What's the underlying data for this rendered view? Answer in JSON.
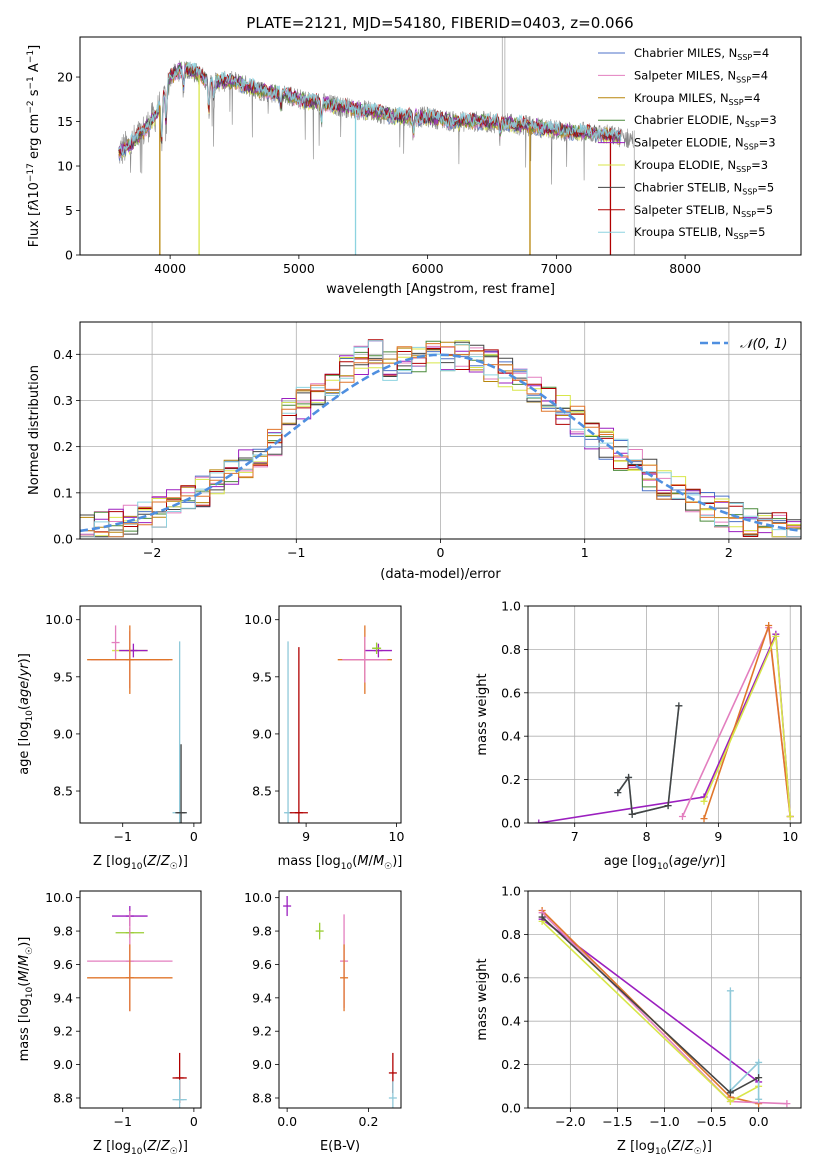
{
  "figure": {
    "title": "PLATE=2121, MJD=54180, FIBERID=0403, z=0.066"
  },
  "colors": {
    "chabrier_miles": "#4c72c8",
    "salpeter_miles": "#e37fbf",
    "kroupa_miles": "#b8860b",
    "chabrier_elodie": "#4a8a3a",
    "salpeter_elodie": "#9b1fbf",
    "kroupa_elodie": "#d8e64a",
    "chabrier_stelib": "#444444",
    "salpeter_stelib": "#b00000",
    "kroupa_stelib": "#8dd3e0",
    "data": "#888888",
    "model_mix": "#90c9d9",
    "gauss": "#4f8fe0",
    "orange": "#e0762b",
    "green": "#9acd32"
  },
  "chart_data": [
    {
      "id": "spectrum",
      "type": "line",
      "xlabel": "wavelength [Angstrom, rest frame]",
      "ylabel": "Flux [f_λ 10^-17 erg cm^-2 s^-1 A^-1]",
      "xlim": [
        3300,
        8900
      ],
      "ylim": [
        0,
        24.5
      ],
      "xticks": [
        "4000",
        "5000",
        "6000",
        "7000",
        "8000"
      ],
      "yticks": [
        "0",
        "5",
        "10",
        "15",
        "20"
      ],
      "legend": [
        {
          "model": "Chabrier MILES",
          "n": "=4",
          "key": "chabrier_miles"
        },
        {
          "model": "Salpeter MILES",
          "n": "=4",
          "key": "salpeter_miles"
        },
        {
          "model": "Kroupa MILES",
          "n": "=4",
          "key": "kroupa_miles"
        },
        {
          "model": "Chabrier ELODIE",
          "n": "=3",
          "key": "chabrier_elodie"
        },
        {
          "model": "Salpeter ELODIE",
          "n": "=3",
          "key": "salpeter_elodie"
        },
        {
          "model": "Kroupa ELODIE",
          "n": "=3",
          "key": "kroupa_elodie"
        },
        {
          "model": "Chabrier STELIB",
          "n": "=5",
          "key": "chabrier_stelib"
        },
        {
          "model": "Salpeter STELIB",
          "n": "=5",
          "key": "salpeter_stelib"
        },
        {
          "model": "Kroupa STELIB",
          "n": "=5",
          "key": "kroupa_stelib"
        }
      ],
      "legend_placement": "top-right",
      "continuum": [
        [
          3600,
          11.5
        ],
        [
          3700,
          12.5
        ],
        [
          3800,
          14
        ],
        [
          3900,
          16
        ],
        [
          4000,
          20
        ],
        [
          4100,
          21
        ],
        [
          4200,
          20.5
        ],
        [
          4300,
          19.5
        ],
        [
          4500,
          19.5
        ],
        [
          4700,
          18.5
        ],
        [
          4900,
          18
        ],
        [
          5000,
          17.5
        ],
        [
          5200,
          17
        ],
        [
          5400,
          16.5
        ],
        [
          5600,
          16
        ],
        [
          5800,
          15.5
        ],
        [
          6000,
          15.5
        ],
        [
          6200,
          15
        ],
        [
          6400,
          15
        ],
        [
          6600,
          14.8
        ],
        [
          6800,
          14.5
        ],
        [
          7000,
          14
        ],
        [
          7200,
          13.8
        ],
        [
          7400,
          13.5
        ],
        [
          7600,
          13
        ]
      ]
    },
    {
      "id": "residuals",
      "type": "line",
      "xlabel": "(data-model)/error",
      "ylabel": "Normed distribution",
      "xlim": [
        -2.5,
        2.5
      ],
      "ylim": [
        0,
        0.47
      ],
      "xticks": [
        "−2",
        "−1",
        "0",
        "1",
        "2"
      ],
      "yticks": [
        "0.0",
        "0.1",
        "0.2",
        "0.3",
        "0.4"
      ],
      "grid": true,
      "legend": "𝒩(0, 1)",
      "legend_placement": "top-right"
    },
    {
      "id": "age_vs_Z",
      "type": "scatter",
      "xlabel": "Z [log10(Z/Z☉)]",
      "ylabel": "age  [log10(age/yr)]",
      "xlim": [
        -1.6,
        0.1
      ],
      "ylim": [
        8.22,
        10.12
      ],
      "xticks": [
        "−1",
        "0"
      ],
      "yticks": [
        "8.5",
        "9.0",
        "9.5",
        "10.0"
      ],
      "points": [
        {
          "x": -0.9,
          "y": 9.73,
          "xerr": 0.25,
          "yerr": 0.03,
          "key": "kroupa_elodie"
        },
        {
          "x": -0.85,
          "y": 9.73,
          "xerr": 0.2,
          "yerr": 0.06,
          "key": "salpeter_elodie"
        },
        {
          "x": -1.1,
          "y": 9.8,
          "xerr": 0,
          "yerr": 0.15,
          "key": "salpeter_miles"
        },
        {
          "x": -0.9,
          "y": 9.65,
          "xerr": 0.55,
          "yerr": 0.25,
          "key": "salpeter_miles"
        },
        {
          "x": -0.9,
          "y": 9.65,
          "xerr": 0.6,
          "yerr": 0.3,
          "key": "orange"
        },
        {
          "x": -0.2,
          "y": 8.31,
          "xerr": 0.1,
          "yerr": 1.5,
          "key": "model_mix"
        },
        {
          "x": -0.18,
          "y": 8.31,
          "xerr": 0.08,
          "yerr": 0.6,
          "key": "chabrier_stelib"
        }
      ]
    },
    {
      "id": "age_vs_mass",
      "type": "scatter",
      "xlabel": "mass [log10(M/M☉)]",
      "ylabel": "",
      "xlim": [
        8.7,
        10.05
      ],
      "ylim": [
        8.22,
        10.12
      ],
      "xticks": [
        "9",
        "10"
      ],
      "yticks": [
        "8.5",
        "9.0",
        "9.5",
        "10.0"
      ],
      "points": [
        {
          "x": 9.8,
          "y": 9.73,
          "xerr": 0.15,
          "yerr": 0.06,
          "key": "salpeter_elodie"
        },
        {
          "x": 9.78,
          "y": 9.75,
          "xerr": 0.05,
          "yerr": 0.05,
          "key": "green"
        },
        {
          "x": 9.65,
          "y": 9.65,
          "xerr": 0.3,
          "yerr": 0.3,
          "key": "orange"
        },
        {
          "x": 9.65,
          "y": 9.65,
          "xerr": 0.25,
          "yerr": 0.2,
          "key": "salpeter_miles"
        },
        {
          "x": 8.8,
          "y": 8.31,
          "xerr": 0.03,
          "yerr": 1.5,
          "key": "model_mix"
        },
        {
          "x": 8.92,
          "y": 8.31,
          "xerr": 0.1,
          "yerr": 1.45,
          "key": "salpeter_stelib"
        }
      ]
    },
    {
      "id": "mass_weight_vs_age",
      "type": "line",
      "xlabel": "age  [log10(age/yr)]",
      "ylabel": "mass weight",
      "xlim": [
        6.35,
        10.15
      ],
      "ylim": [
        0,
        1.0
      ],
      "xticks": [
        "7",
        "8",
        "9",
        "10"
      ],
      "yticks": [
        "0.0",
        "0.2",
        "0.4",
        "0.6",
        "0.8",
        "1.0"
      ],
      "grid": true,
      "series": [
        {
          "key": "salpeter_elodie",
          "x": [
            6.5,
            8.8,
            9.8,
            10.0
          ],
          "y": [
            0.0,
            0.12,
            0.87,
            0.03
          ]
        },
        {
          "key": "salpeter_miles",
          "x": [
            8.5,
            9.7,
            10.0
          ],
          "y": [
            0.03,
            0.9,
            0.03
          ]
        },
        {
          "key": "orange",
          "x": [
            8.8,
            9.7,
            10.0
          ],
          "y": [
            0.02,
            0.91,
            0.03
          ]
        },
        {
          "key": "kroupa_elodie",
          "x": [
            8.8,
            9.8,
            10.0
          ],
          "y": [
            0.1,
            0.86,
            0.03
          ]
        },
        {
          "key": "model_mix",
          "x": [
            7.6,
            7.75,
            7.8,
            8.3,
            8.45
          ],
          "y": [
            0.14,
            0.21,
            0.04,
            0.08,
            0.54
          ]
        },
        {
          "key": "chabrier_stelib",
          "x": [
            7.6,
            7.75,
            7.8,
            8.3,
            8.45
          ],
          "y": [
            0.14,
            0.21,
            0.04,
            0.08,
            0.54
          ]
        }
      ]
    },
    {
      "id": "mass_vs_Z",
      "type": "scatter",
      "xlabel": "Z [log10(Z/Z☉)]",
      "ylabel": "mass [log10(M/M☉)]",
      "xlim": [
        -1.6,
        0.1
      ],
      "ylim": [
        8.74,
        10.04
      ],
      "xticks": [
        "−1",
        "0"
      ],
      "yticks": [
        "8.8",
        "9.0",
        "9.2",
        "9.4",
        "9.6",
        "9.8",
        "10.0"
      ],
      "points": [
        {
          "x": -0.9,
          "y": 9.89,
          "xerr": 0.25,
          "yerr": 0.06,
          "key": "salpeter_elodie"
        },
        {
          "x": -0.9,
          "y": 9.79,
          "xerr": 0.2,
          "yerr": 0.03,
          "key": "green"
        },
        {
          "x": -0.9,
          "y": 9.62,
          "xerr": 0.6,
          "yerr": 0.3,
          "key": "salpeter_miles"
        },
        {
          "x": -0.9,
          "y": 9.52,
          "xerr": 0.6,
          "yerr": 0.2,
          "key": "orange"
        },
        {
          "x": -0.2,
          "y": 8.92,
          "xerr": 0.1,
          "yerr": 0.15,
          "key": "salpeter_stelib"
        },
        {
          "x": -0.2,
          "y": 8.79,
          "xerr": 0.1,
          "yerr": 0.12,
          "key": "model_mix"
        }
      ]
    },
    {
      "id": "mass_vs_ebv",
      "type": "scatter",
      "xlabel": "E(B-V)",
      "ylabel": "",
      "xlim": [
        -0.02,
        0.28
      ],
      "ylim": [
        8.74,
        10.04
      ],
      "xticks": [
        "0.0",
        "0.2"
      ],
      "yticks": [
        "8.8",
        "9.0",
        "9.2",
        "9.4",
        "9.6",
        "9.8",
        "10.0"
      ],
      "points": [
        {
          "x": 0.0,
          "y": 9.95,
          "xerr": 0,
          "yerr": 0.06,
          "key": "salpeter_elodie"
        },
        {
          "x": 0.08,
          "y": 9.8,
          "xerr": 0,
          "yerr": 0.05,
          "key": "green"
        },
        {
          "x": 0.14,
          "y": 9.62,
          "xerr": 0,
          "yerr": 0.28,
          "key": "salpeter_miles"
        },
        {
          "x": 0.14,
          "y": 9.52,
          "xerr": 0,
          "yerr": 0.2,
          "key": "orange"
        },
        {
          "x": 0.26,
          "y": 8.95,
          "xerr": 0,
          "yerr": 0.12,
          "key": "salpeter_stelib"
        },
        {
          "x": 0.26,
          "y": 8.8,
          "xerr": 0,
          "yerr": 0.1,
          "key": "model_mix"
        }
      ]
    },
    {
      "id": "mass_weight_vs_Z",
      "type": "line",
      "xlabel": "Z [log10(Z/Z☉)]",
      "ylabel": "mass weight",
      "xlim": [
        -2.45,
        0.45
      ],
      "ylim": [
        0,
        1.0
      ],
      "xticks": [
        "−2.0",
        "−1.5",
        "−1.0",
        "−0.5",
        "0.0"
      ],
      "yticks": [
        "0.0",
        "0.2",
        "0.4",
        "0.6",
        "0.8",
        "1.0"
      ],
      "grid": true,
      "series": [
        {
          "key": "salpeter_elodie",
          "x": [
            -2.3,
            0.0
          ],
          "y": [
            0.87,
            0.12
          ]
        },
        {
          "key": "orange",
          "x": [
            -2.3,
            -0.3,
            0.0
          ],
          "y": [
            0.91,
            0.05,
            0.02
          ]
        },
        {
          "key": "salpeter_miles",
          "x": [
            -2.3,
            -0.3,
            0.3
          ],
          "y": [
            0.9,
            0.03,
            0.02
          ]
        },
        {
          "key": "kroupa_elodie",
          "x": [
            -2.3,
            -0.3,
            0.0
          ],
          "y": [
            0.86,
            0.03,
            0.1
          ]
        },
        {
          "key": "model_mix",
          "x": [
            -0.3,
            -0.3,
            0.0,
            0.0
          ],
          "y": [
            0.54,
            0.08,
            0.21,
            0.04
          ]
        },
        {
          "key": "chabrier_stelib",
          "x": [
            -2.3,
            -0.3,
            0.0
          ],
          "y": [
            0.88,
            0.07,
            0.14
          ]
        }
      ]
    }
  ]
}
